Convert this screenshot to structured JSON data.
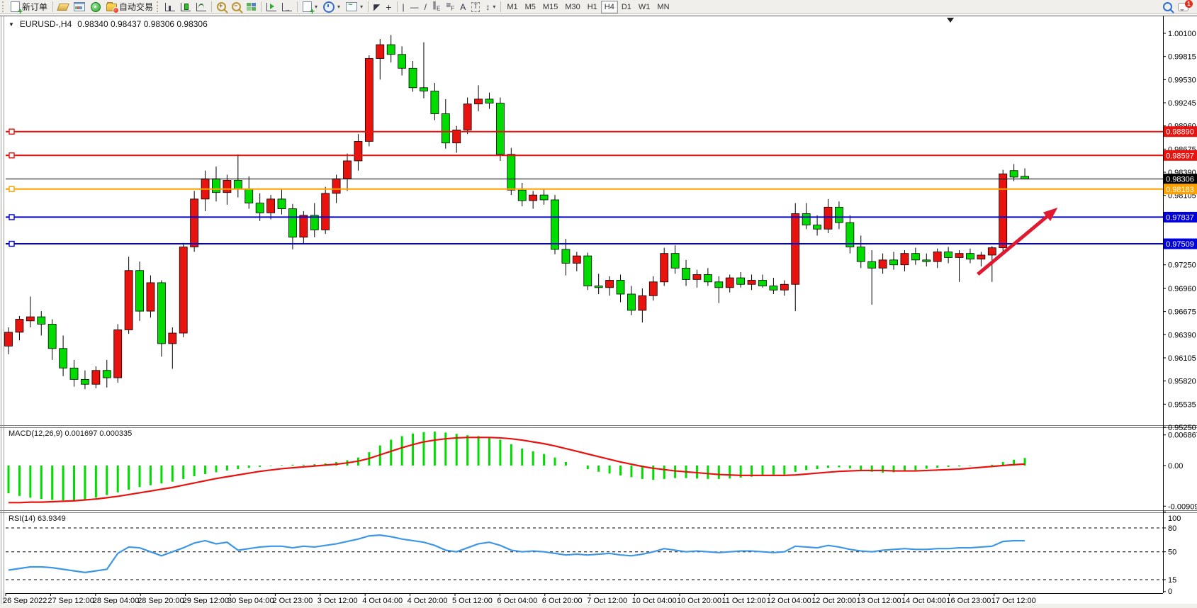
{
  "toolbar": {
    "new_order": "新订单",
    "autotrading": "自动交易",
    "timeframes": [
      "M1",
      "M5",
      "M15",
      "M30",
      "H1",
      "H4",
      "D1",
      "W1",
      "MN"
    ],
    "active_timeframe": "H4",
    "letters": {
      "channel": "E",
      "fibo": "F",
      "text": "A",
      "label": "T"
    },
    "notification_count": "1"
  },
  "chart": {
    "symbol_title": "EURUSD-,H4",
    "ohlc_title": "0.98340 0.98437 0.98306 0.98306",
    "macd_label": "MACD(12,26,9) 0.001697 0.000335",
    "rsi_label": "RSI(14) 63.9349"
  },
  "chart_data": [
    {
      "type": "candlestick",
      "symbol": "EURUSD-",
      "timeframe": "H4",
      "up_color": "#e8120e",
      "down_color": "#00dc00",
      "ylim": [
        0.9528,
        1.0032
      ],
      "y_ticks": [
        "1.00100",
        "0.99815",
        "0.99530",
        "0.99245",
        "0.98960",
        "0.98675",
        "0.98390",
        "0.98105",
        "0.97250",
        "0.96960",
        "0.96675",
        "0.96390",
        "0.96105",
        "0.95820",
        "0.95535",
        "0.95250"
      ],
      "x_labels": [
        "26 Sep 2022",
        "27 Sep 12:00",
        "28 Sep 04:00",
        "28 Sep 20:00",
        "29 Sep 12:00",
        "30 Sep 04:00",
        "2 Oct 23:00",
        "3 Oct 12:00",
        "4 Oct 04:00",
        "4 Oct 20:00",
        "5 Oct 12:00",
        "6 Oct 04:00",
        "6 Oct 20:00",
        "7 Oct 12:00",
        "10 Oct 04:00",
        "10 Oct 20:00",
        "11 Oct 12:00",
        "12 Oct 04:00",
        "12 Oct 20:00",
        "13 Oct 12:00",
        "14 Oct 04:00",
        "16 Oct 23:00",
        "17 Oct 12:00"
      ],
      "hlines": [
        {
          "price": 0.9889,
          "label": "0.98890",
          "color": "#e8120e",
          "width": 2,
          "handle": true,
          "role": "resistance-line-1"
        },
        {
          "price": 0.98597,
          "label": "0.98597",
          "color": "#e8120e",
          "width": 2,
          "handle": true,
          "role": "resistance-line-2"
        },
        {
          "price": 0.98306,
          "label": "0.98306",
          "color": "#000000",
          "width": 1,
          "handle": false,
          "role": "current-price-line"
        },
        {
          "price": 0.98183,
          "label": "0.98183",
          "color": "#ffa200",
          "width": 2,
          "handle": true,
          "role": "pivot-line"
        },
        {
          "price": 0.97837,
          "label": "0.97837",
          "color": "#0000dc",
          "width": 2,
          "handle": true,
          "role": "support-line-1"
        },
        {
          "price": 0.97509,
          "label": "0.97509",
          "color": "#0000dc",
          "width": 2,
          "handle": true,
          "role": "support-line-2"
        }
      ],
      "current_bar": {
        "open": 0.9834,
        "high": 0.98437,
        "low": 0.98306,
        "close": 0.98306
      },
      "arrow": {
        "x1_bar": 88.7,
        "y1_price": 0.97134,
        "x2_bar": 96.0,
        "y2_price": 0.97954,
        "color": "#e01830"
      },
      "candles": [
        [
          0.9625,
          0.9648,
          0.9615,
          0.9642
        ],
        [
          0.9642,
          0.9662,
          0.9632,
          0.9658
        ],
        [
          0.9656,
          0.9686,
          0.9648,
          0.9661
        ],
        [
          0.9661,
          0.9668,
          0.9638,
          0.9652
        ],
        [
          0.9652,
          0.9658,
          0.9608,
          0.9622
        ],
        [
          0.9622,
          0.9638,
          0.9588,
          0.9598
        ],
        [
          0.9598,
          0.9608,
          0.9575,
          0.9584
        ],
        [
          0.9584,
          0.9595,
          0.9572,
          0.9578
        ],
        [
          0.9578,
          0.96,
          0.9573,
          0.9595
        ],
        [
          0.9595,
          0.9608,
          0.9574,
          0.9586
        ],
        [
          0.9586,
          0.9652,
          0.958,
          0.9645
        ],
        [
          0.9645,
          0.9735,
          0.964,
          0.9718
        ],
        [
          0.9718,
          0.9729,
          0.9656,
          0.9668
        ],
        [
          0.9668,
          0.9712,
          0.966,
          0.9703
        ],
        [
          0.9703,
          0.9706,
          0.9612,
          0.9628
        ],
        [
          0.9628,
          0.9648,
          0.9597,
          0.9641
        ],
        [
          0.9641,
          0.9752,
          0.9636,
          0.9747
        ],
        [
          0.9747,
          0.9816,
          0.9741,
          0.9806
        ],
        [
          0.9806,
          0.9841,
          0.9791,
          0.9831
        ],
        [
          0.9831,
          0.9846,
          0.9803,
          0.9814
        ],
        [
          0.9814,
          0.9836,
          0.9799,
          0.9829
        ],
        [
          0.9829,
          0.9861,
          0.9808,
          0.9818
        ],
        [
          0.9818,
          0.9834,
          0.9794,
          0.9801
        ],
        [
          0.9801,
          0.9813,
          0.9779,
          0.9789
        ],
        [
          0.9789,
          0.9811,
          0.9781,
          0.9806
        ],
        [
          0.9806,
          0.9819,
          0.9787,
          0.9794
        ],
        [
          0.9794,
          0.98,
          0.9744,
          0.9759
        ],
        [
          0.9759,
          0.9791,
          0.9751,
          0.9786
        ],
        [
          0.9786,
          0.9801,
          0.9759,
          0.9768
        ],
        [
          0.9768,
          0.9821,
          0.9763,
          0.9813
        ],
        [
          0.9813,
          0.9836,
          0.9801,
          0.9831
        ],
        [
          0.9831,
          0.9862,
          0.9816,
          0.9853
        ],
        [
          0.9853,
          0.9886,
          0.9841,
          0.9877
        ],
        [
          0.9877,
          0.9983,
          0.9871,
          0.9979
        ],
        [
          0.9979,
          1.0003,
          0.9953,
          0.9996
        ],
        [
          0.9996,
          1.0008,
          0.9974,
          0.9984
        ],
        [
          0.9984,
          0.9994,
          0.9958,
          0.9967
        ],
        [
          0.9967,
          0.9976,
          0.9938,
          0.9943
        ],
        [
          0.9943,
          0.9999,
          0.993,
          0.9939
        ],
        [
          0.9939,
          0.9949,
          0.9903,
          0.9911
        ],
        [
          0.9911,
          0.9929,
          0.9868,
          0.9875
        ],
        [
          0.9875,
          0.9896,
          0.9863,
          0.9891
        ],
        [
          0.9891,
          0.9931,
          0.9886,
          0.9923
        ],
        [
          0.9923,
          0.9946,
          0.9914,
          0.9929
        ],
        [
          0.9929,
          0.9937,
          0.9917,
          0.9924
        ],
        [
          0.9924,
          0.9931,
          0.9853,
          0.9861
        ],
        [
          0.9861,
          0.9869,
          0.9811,
          0.9817
        ],
        [
          0.9817,
          0.9826,
          0.9797,
          0.9804
        ],
        [
          0.9804,
          0.9816,
          0.9794,
          0.9811
        ],
        [
          0.9811,
          0.9818,
          0.9799,
          0.9805
        ],
        [
          0.9805,
          0.9811,
          0.9738,
          0.9744
        ],
        [
          0.9744,
          0.9757,
          0.9712,
          0.9727
        ],
        [
          0.9727,
          0.9741,
          0.9717,
          0.9736
        ],
        [
          0.9736,
          0.974,
          0.9694,
          0.9699
        ],
        [
          0.9699,
          0.9714,
          0.9689,
          0.9697
        ],
        [
          0.9697,
          0.9711,
          0.9687,
          0.9706
        ],
        [
          0.9706,
          0.9713,
          0.9679,
          0.9689
        ],
        [
          0.9689,
          0.9699,
          0.9663,
          0.9669
        ],
        [
          0.9669,
          0.9696,
          0.9654,
          0.9687
        ],
        [
          0.9687,
          0.9711,
          0.9681,
          0.9704
        ],
        [
          0.9704,
          0.9746,
          0.9699,
          0.9739
        ],
        [
          0.9739,
          0.9749,
          0.9714,
          0.9721
        ],
        [
          0.9721,
          0.9731,
          0.9699,
          0.9707
        ],
        [
          0.9707,
          0.9719,
          0.9697,
          0.9713
        ],
        [
          0.9713,
          0.9721,
          0.9699,
          0.9704
        ],
        [
          0.9704,
          0.9711,
          0.9678,
          0.9697
        ],
        [
          0.9697,
          0.9713,
          0.9691,
          0.9709
        ],
        [
          0.9709,
          0.9716,
          0.9697,
          0.9701
        ],
        [
          0.9701,
          0.9713,
          0.9694,
          0.9706
        ],
        [
          0.9706,
          0.9713,
          0.9697,
          0.9699
        ],
        [
          0.9699,
          0.9709,
          0.9689,
          0.9694
        ],
        [
          0.9694,
          0.9706,
          0.9687,
          0.9701
        ],
        [
          0.9701,
          0.9801,
          0.9668,
          0.9788
        ],
        [
          0.9788,
          0.9801,
          0.9769,
          0.9774
        ],
        [
          0.9774,
          0.9786,
          0.9761,
          0.9769
        ],
        [
          0.9769,
          0.9806,
          0.9764,
          0.9796
        ],
        [
          0.9796,
          0.9803,
          0.9769,
          0.9777
        ],
        [
          0.9777,
          0.9786,
          0.9739,
          0.9747
        ],
        [
          0.9747,
          0.9761,
          0.9721,
          0.9729
        ],
        [
          0.9729,
          0.9743,
          0.9676,
          0.9721
        ],
        [
          0.9721,
          0.9739,
          0.9714,
          0.9731
        ],
        [
          0.9731,
          0.9741,
          0.9719,
          0.9725
        ],
        [
          0.9725,
          0.9743,
          0.9717,
          0.9739
        ],
        [
          0.9739,
          0.9746,
          0.9725,
          0.9731
        ],
        [
          0.9731,
          0.9739,
          0.9723,
          0.9729
        ],
        [
          0.9729,
          0.9745,
          0.9721,
          0.9741
        ],
        [
          0.9741,
          0.9747,
          0.9727,
          0.9734
        ],
        [
          0.9734,
          0.9743,
          0.9704,
          0.9739
        ],
        [
          0.9739,
          0.9745,
          0.9727,
          0.9732
        ],
        [
          0.9732,
          0.9741,
          0.9723,
          0.9737
        ],
        [
          0.9737,
          0.9748,
          0.9704,
          0.9746
        ],
        [
          0.9746,
          0.9842,
          0.9741,
          0.9837
        ],
        [
          0.9841,
          0.9849,
          0.9828,
          0.9833
        ],
        [
          0.9834,
          0.98437,
          0.98306,
          0.98306
        ]
      ]
    },
    {
      "type": "bar",
      "name": "MACD",
      "params": "12,26,9",
      "current": {
        "macd": 0.001697,
        "signal": 0.000335
      },
      "bar_color": "#00dc00",
      "signal_color": "#e8120e",
      "ylim": [
        -0.01,
        0.0084
      ],
      "y_ticks": [
        {
          "v": 0.006867,
          "label": "0.006867"
        },
        {
          "v": 0.0,
          "label": "0.00"
        },
        {
          "v": -0.009094,
          "label": "-0.009094"
        }
      ],
      "values": [
        -0.0062,
        -0.0068,
        -0.0072,
        -0.0075,
        -0.0077,
        -0.0078,
        -0.0078,
        -0.0076,
        -0.0072,
        -0.0066,
        -0.006,
        -0.0054,
        -0.0048,
        -0.0044,
        -0.004,
        -0.0036,
        -0.003,
        -0.0024,
        -0.0019,
        -0.0015,
        -0.0011,
        -0.0008,
        -0.0005,
        -0.0003,
        -0.0001,
        0.0001,
        0.0002,
        0.0002,
        0.0003,
        0.0005,
        0.0008,
        0.0012,
        0.0018,
        0.003,
        0.0045,
        0.0058,
        0.0066,
        0.0072,
        0.0075,
        0.0076,
        0.0074,
        0.0071,
        0.0068,
        0.0066,
        0.0064,
        0.0058,
        0.0048,
        0.0038,
        0.0032,
        0.0026,
        0.0018,
        0.0008,
        0.0,
        -0.0008,
        -0.0014,
        -0.0018,
        -0.0022,
        -0.0026,
        -0.003,
        -0.0032,
        -0.003,
        -0.0028,
        -0.0028,
        -0.0029,
        -0.003,
        -0.003,
        -0.0029,
        -0.0027,
        -0.0025,
        -0.0023,
        -0.0022,
        -0.002,
        -0.0014,
        -0.001,
        -0.0008,
        -0.0005,
        -0.0004,
        -0.0006,
        -0.001,
        -0.0014,
        -0.0016,
        -0.0015,
        -0.0013,
        -0.001,
        -0.0007,
        -0.0005,
        -0.0003,
        -0.0002,
        -0.0001,
        0.0,
        0.0002,
        0.0008,
        0.0013,
        0.0017
      ],
      "signal": [
        -0.0083,
        -0.0083,
        -0.0082,
        -0.0082,
        -0.0081,
        -0.008,
        -0.0079,
        -0.0077,
        -0.0075,
        -0.0072,
        -0.0069,
        -0.0065,
        -0.0061,
        -0.0057,
        -0.0053,
        -0.0049,
        -0.0044,
        -0.0039,
        -0.0034,
        -0.0029,
        -0.0025,
        -0.0021,
        -0.0017,
        -0.0013,
        -0.001,
        -0.0007,
        -0.0005,
        -0.0003,
        -0.0001,
        0.0001,
        0.0003,
        0.0006,
        0.001,
        0.0016,
        0.0024,
        0.0032,
        0.004,
        0.0047,
        0.0053,
        0.0057,
        0.006,
        0.0062,
        0.0063,
        0.0063,
        0.0063,
        0.0062,
        0.006,
        0.0057,
        0.0053,
        0.0049,
        0.0044,
        0.0038,
        0.0032,
        0.0026,
        0.002,
        0.0014,
        0.0008,
        0.0003,
        -0.0002,
        -0.0006,
        -0.0009,
        -0.0012,
        -0.0014,
        -0.0016,
        -0.0018,
        -0.002,
        -0.0021,
        -0.0022,
        -0.0022,
        -0.0022,
        -0.0022,
        -0.0022,
        -0.0021,
        -0.0019,
        -0.0017,
        -0.0015,
        -0.0013,
        -0.0012,
        -0.0011,
        -0.0011,
        -0.0011,
        -0.0012,
        -0.0012,
        -0.0012,
        -0.0011,
        -0.001,
        -0.0009,
        -0.0008,
        -0.0006,
        -0.0004,
        -0.0002,
        0.0,
        0.0002,
        0.00034
      ]
    },
    {
      "type": "line",
      "name": "RSI",
      "params": "14",
      "current": 63.9349,
      "line_color": "#3e96e6",
      "levels": [
        80,
        50,
        15
      ],
      "y_ticks": [
        {
          "v": 100,
          "label": "100"
        },
        {
          "v": 80,
          "label": "80"
        },
        {
          "v": 50,
          "label": "50"
        },
        {
          "v": 15,
          "label": "15"
        },
        {
          "v": 0,
          "label": "0"
        }
      ],
      "ylim": [
        0,
        100
      ],
      "values": [
        27,
        29,
        31,
        31,
        30,
        28,
        26,
        24,
        26,
        28,
        48,
        56,
        55,
        50,
        45,
        50,
        55,
        61,
        64,
        60,
        62,
        52,
        54,
        56,
        57,
        57,
        55,
        57,
        56,
        58,
        60,
        63,
        66,
        70,
        71,
        69,
        66,
        64,
        62,
        58,
        52,
        50,
        55,
        60,
        62,
        58,
        52,
        50,
        51,
        50,
        48,
        46,
        47,
        46,
        47,
        48,
        46,
        45,
        47,
        50,
        54,
        52,
        50,
        51,
        50,
        49,
        50,
        51,
        51,
        50,
        49,
        50,
        57,
        56,
        55,
        58,
        56,
        53,
        51,
        50,
        52,
        53,
        54,
        53,
        53,
        54,
        54,
        55,
        55,
        56,
        57,
        63,
        64,
        63.93
      ]
    }
  ]
}
